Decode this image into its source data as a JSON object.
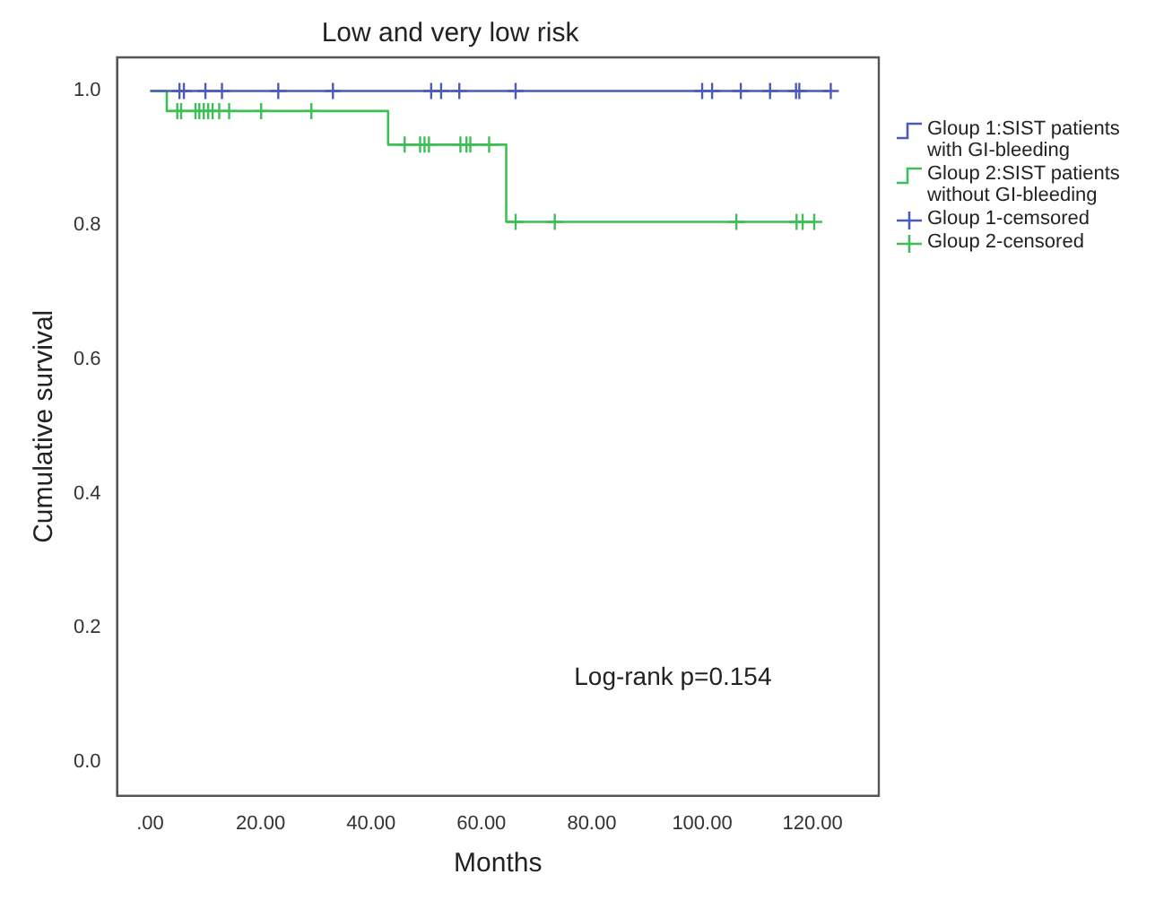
{
  "chart_data": {
    "type": "step",
    "title": "Low and very low risk",
    "xlabel": "Months",
    "ylabel": "Cumulative survival",
    "xlim": [
      -6,
      132
    ],
    "ylim": [
      -0.05,
      1.05
    ],
    "xticks": [
      {
        "value": 0,
        "label": ".00"
      },
      {
        "value": 20,
        "label": "20.00"
      },
      {
        "value": 40,
        "label": "40.00"
      },
      {
        "value": 60,
        "label": "60.00"
      },
      {
        "value": 80,
        "label": "80.00"
      },
      {
        "value": 100,
        "label": "100.00"
      },
      {
        "value": 120,
        "label": "120.00"
      }
    ],
    "yticks": [
      {
        "value": 0,
        "label": "0.0"
      },
      {
        "value": 0.2,
        "label": "0.2"
      },
      {
        "value": 0.4,
        "label": "0.4"
      },
      {
        "value": 0.6,
        "label": "0.6"
      },
      {
        "value": 0.8,
        "label": "0.8"
      },
      {
        "value": 1,
        "label": "1.0"
      }
    ],
    "grid": false,
    "legend": "top right",
    "series": [
      {
        "name": "Gloup 1:SIST patients with GI-bleeding",
        "color": "#4b5bb8",
        "marker": "none",
        "x": [
          0,
          123.3
        ],
        "values": [
          1,
          1
        ]
      },
      {
        "name": "Gloup 2:SIST patients without GI-bleeding",
        "color": "#3dbf55",
        "marker": "none",
        "x": [
          0,
          3,
          43.1,
          64.5,
          120.3
        ],
        "values": [
          1,
          0.97,
          0.92,
          0.805,
          0.805
        ]
      },
      {
        "name": "Gloup 1-cemsored",
        "type": "scatter",
        "color": "#4b5bb8",
        "marker": "cross",
        "x": [
          5.3,
          6.1,
          10,
          13,
          23.2,
          33.1,
          50.9,
          52.7,
          56,
          66.2,
          100,
          101.8,
          107,
          112.3,
          117,
          117.6,
          123.3
        ],
        "values": [
          1,
          1,
          1,
          1,
          1,
          1,
          1,
          1,
          1,
          1,
          1,
          1,
          1,
          1,
          1,
          1,
          1
        ]
      },
      {
        "name": "Gloup 2-censored",
        "type": "scatter",
        "color": "#3dbf55",
        "marker": "cross",
        "x": [
          4.9,
          5.6,
          8.2,
          8.9,
          9.7,
          10.5,
          11.3,
          12.5,
          14.3,
          20.1,
          29.2,
          46.1,
          48.9,
          49.7,
          50.5,
          56.2,
          57.3,
          58,
          61.4,
          66.2,
          73.3,
          106.2,
          117.1,
          118.2,
          120.3
        ],
        "values": [
          0.97,
          0.97,
          0.97,
          0.97,
          0.97,
          0.97,
          0.97,
          0.97,
          0.97,
          0.97,
          0.97,
          0.92,
          0.92,
          0.92,
          0.92,
          0.92,
          0.92,
          0.92,
          0.92,
          0.805,
          0.805,
          0.805,
          0.805,
          0.805,
          0.805
        ]
      }
    ],
    "annotations": [
      "Log-rank p=0.154"
    ]
  }
}
